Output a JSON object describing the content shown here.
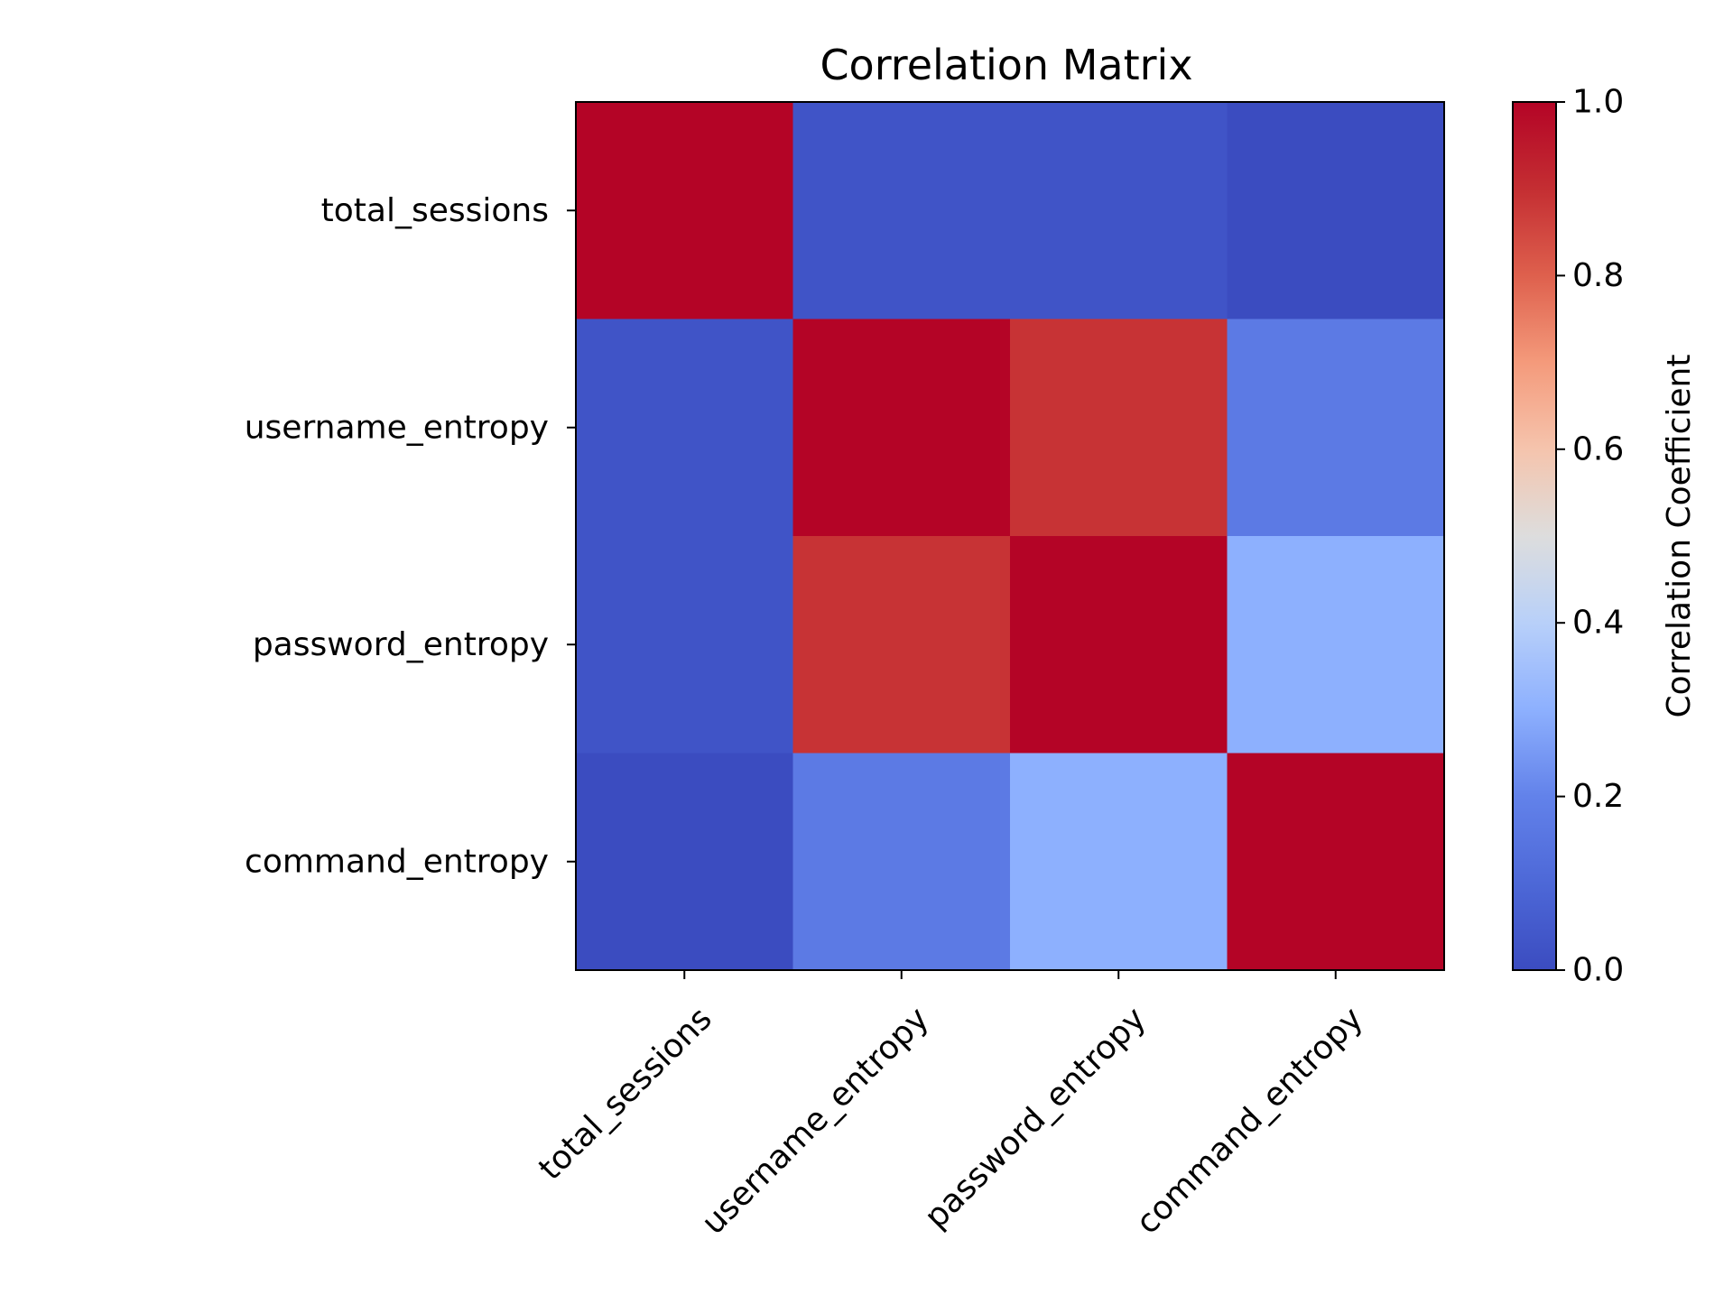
{
  "chart_data": {
    "type": "heatmap",
    "title": "Correlation Matrix",
    "xlabel": "",
    "ylabel": "",
    "rows": [
      "total_sessions",
      "username_entropy",
      "password_entropy",
      "command_entropy"
    ],
    "columns": [
      "total_sessions",
      "username_entropy",
      "password_entropy",
      "command_entropy"
    ],
    "values": [
      [
        1.0,
        0.03,
        0.03,
        0.0
      ],
      [
        0.03,
        1.0,
        0.89,
        0.17
      ],
      [
        0.03,
        0.89,
        1.0,
        0.3
      ],
      [
        0.0,
        0.17,
        0.3,
        1.0
      ]
    ],
    "colormap": "coolwarm",
    "colorbar": {
      "label": "Correlation Coefficient",
      "range": [
        0.0,
        1.0
      ],
      "ticks": [
        0.0,
        0.2,
        0.4,
        0.6,
        0.8,
        1.0
      ],
      "tick_labels": [
        "0.0",
        "0.2",
        "0.4",
        "0.6",
        "0.8",
        "1.0"
      ]
    },
    "grid": false,
    "x_tick_rotation": 45
  }
}
